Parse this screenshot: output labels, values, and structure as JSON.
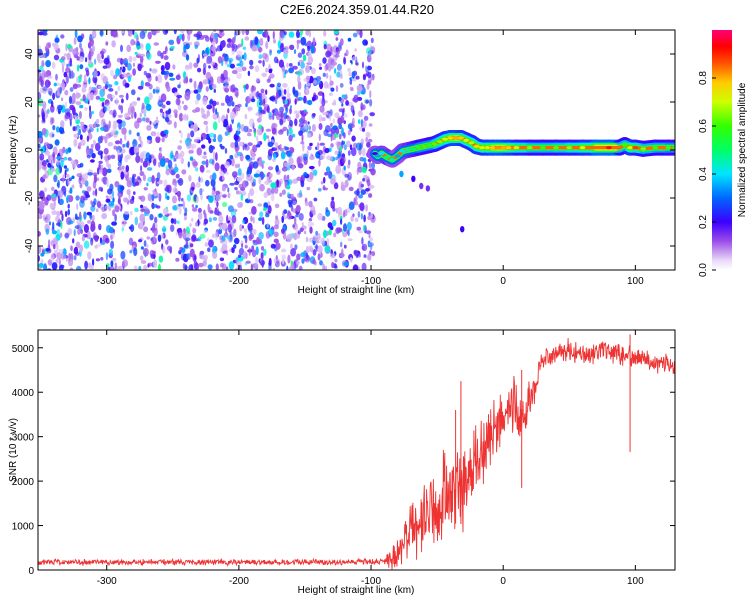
{
  "title": "C2E6.2024.359.01.44.R20",
  "chart_data": [
    {
      "type": "heatmap",
      "xlabel": "Height of straight line (km)",
      "ylabel": "Frequency (Hz)",
      "xlim": [
        -352,
        130
      ],
      "ylim": [
        -50,
        50
      ],
      "xticks": [
        -300,
        -200,
        -100,
        0,
        100
      ],
      "yticks": [
        -40,
        -20,
        0,
        20,
        40
      ],
      "noise_region": {
        "x_range": [
          -352,
          -98
        ],
        "description_level": [
          0.05,
          0.35
        ]
      },
      "signal_track": [
        {
          "x": -97,
          "y": -1.5,
          "v": 0.2
        },
        {
          "x": -95,
          "y": -2.5,
          "v": 0.35
        },
        {
          "x": -92,
          "y": -1.5,
          "v": 0.4
        },
        {
          "x": -88,
          "y": -3.0,
          "v": 0.5
        },
        {
          "x": -84,
          "y": -4.0,
          "v": 0.45
        },
        {
          "x": -80,
          "y": -2.5,
          "v": 0.35
        },
        {
          "x": -76,
          "y": -0.5,
          "v": 0.4
        },
        {
          "x": -72,
          "y": 0.0,
          "v": 0.45
        },
        {
          "x": -68,
          "y": 0.5,
          "v": 0.5
        },
        {
          "x": -64,
          "y": 1.0,
          "v": 0.55
        },
        {
          "x": -60,
          "y": 1.5,
          "v": 0.6
        },
        {
          "x": -56,
          "y": 2.0,
          "v": 0.55
        },
        {
          "x": -52,
          "y": 2.5,
          "v": 0.62
        },
        {
          "x": -48,
          "y": 3.5,
          "v": 0.65
        },
        {
          "x": -44,
          "y": 4.5,
          "v": 0.7
        },
        {
          "x": -40,
          "y": 5.0,
          "v": 0.75
        },
        {
          "x": -36,
          "y": 5.0,
          "v": 0.8
        },
        {
          "x": -32,
          "y": 5.0,
          "v": 0.78
        },
        {
          "x": -28,
          "y": 4.0,
          "v": 0.7
        },
        {
          "x": -24,
          "y": 3.0,
          "v": 0.68
        },
        {
          "x": -20,
          "y": 1.5,
          "v": 0.75
        },
        {
          "x": -16,
          "y": 1.0,
          "v": 0.7
        },
        {
          "x": -12,
          "y": 1.0,
          "v": 0.72
        },
        {
          "x": -8,
          "y": 1.0,
          "v": 0.78
        },
        {
          "x": -4,
          "y": 1.0,
          "v": 0.82
        },
        {
          "x": 0,
          "y": 1.0,
          "v": 0.8
        },
        {
          "x": 4,
          "y": 1.0,
          "v": 0.78
        },
        {
          "x": 10,
          "y": 1.0,
          "v": 0.72
        },
        {
          "x": 20,
          "y": 1.0,
          "v": 0.65
        },
        {
          "x": 30,
          "y": 1.0,
          "v": 0.6
        },
        {
          "x": 40,
          "y": 1.0,
          "v": 0.62
        },
        {
          "x": 50,
          "y": 1.0,
          "v": 0.65
        },
        {
          "x": 60,
          "y": 1.0,
          "v": 0.7
        },
        {
          "x": 70,
          "y": 1.0,
          "v": 0.85
        },
        {
          "x": 80,
          "y": 1.0,
          "v": 0.92
        },
        {
          "x": 88,
          "y": 1.0,
          "v": 0.85
        },
        {
          "x": 92,
          "y": 2.0,
          "v": 0.6
        },
        {
          "x": 96,
          "y": 1.0,
          "v": 0.7
        },
        {
          "x": 100,
          "y": 1.0,
          "v": 0.88
        },
        {
          "x": 106,
          "y": 0.5,
          "v": 0.65
        },
        {
          "x": 115,
          "y": 1.0,
          "v": 0.6
        },
        {
          "x": 125,
          "y": 1.0,
          "v": 0.58
        },
        {
          "x": 130,
          "y": 1.0,
          "v": 0.55
        }
      ],
      "secondary_features": [
        {
          "x": -77,
          "y": -10,
          "v": 0.35
        },
        {
          "x": -68,
          "y": -12,
          "v": 0.2
        },
        {
          "x": -62,
          "y": -15,
          "v": 0.15
        },
        {
          "x": -57,
          "y": -16,
          "v": 0.15
        },
        {
          "x": -31,
          "y": -33,
          "v": 0.2
        }
      ],
      "colorbar": {
        "label": "Normalized spectral amplitude",
        "range": [
          0.0,
          1.0
        ],
        "ticks": [
          0.0,
          0.2,
          0.4,
          0.6,
          0.8
        ]
      }
    },
    {
      "type": "line",
      "xlabel": "Height of straight line (km)",
      "ylabel": "SNR (10 * v/v)",
      "xlim": [
        -352,
        130
      ],
      "ylim": [
        0,
        5400
      ],
      "xticks": [
        -300,
        -200,
        -100,
        0,
        100
      ],
      "yticks": [
        0,
        1000,
        2000,
        3000,
        4000,
        5000
      ],
      "line_color": "#ee3333",
      "series": [
        {
          "name": "SNR",
          "x": [
            -352,
            -300,
            -250,
            -200,
            -150,
            -100,
            -85,
            -80,
            -75,
            -70,
            -65,
            -60,
            -55,
            -50,
            -45,
            -40,
            -35,
            -30,
            -25,
            -20,
            -15,
            -10,
            -5,
            0,
            5,
            10,
            15,
            20,
            25,
            30,
            40,
            50,
            60,
            70,
            80,
            90,
            100,
            110,
            120,
            130
          ],
          "y": [
            180,
            175,
            180,
            175,
            180,
            180,
            200,
            350,
            700,
            1000,
            700,
            1200,
            1400,
            1000,
            1800,
            1500,
            2000,
            1800,
            2200,
            2400,
            2600,
            3000,
            3200,
            3500,
            3700,
            3600,
            3300,
            3800,
            4300,
            4700,
            4900,
            4950,
            4900,
            4850,
            4950,
            4800,
            4850,
            4700,
            4650,
            4600
          ]
        }
      ],
      "noise_amplitude": [
        {
          "x": -352,
          "amp": 80
        },
        {
          "x": -90,
          "amp": 80
        },
        {
          "x": -80,
          "amp": 600
        },
        {
          "x": -40,
          "amp": 1200
        },
        {
          "x": -10,
          "amp": 900
        },
        {
          "x": 15,
          "amp": 700
        },
        {
          "x": 30,
          "amp": 300
        },
        {
          "x": 130,
          "amp": 250
        }
      ],
      "spikes": [
        {
          "x": -32,
          "y": 4250
        },
        {
          "x": -36,
          "y": 3600
        },
        {
          "x": 14,
          "y": 4500
        },
        {
          "x": 96,
          "y": 5300
        }
      ]
    }
  ]
}
